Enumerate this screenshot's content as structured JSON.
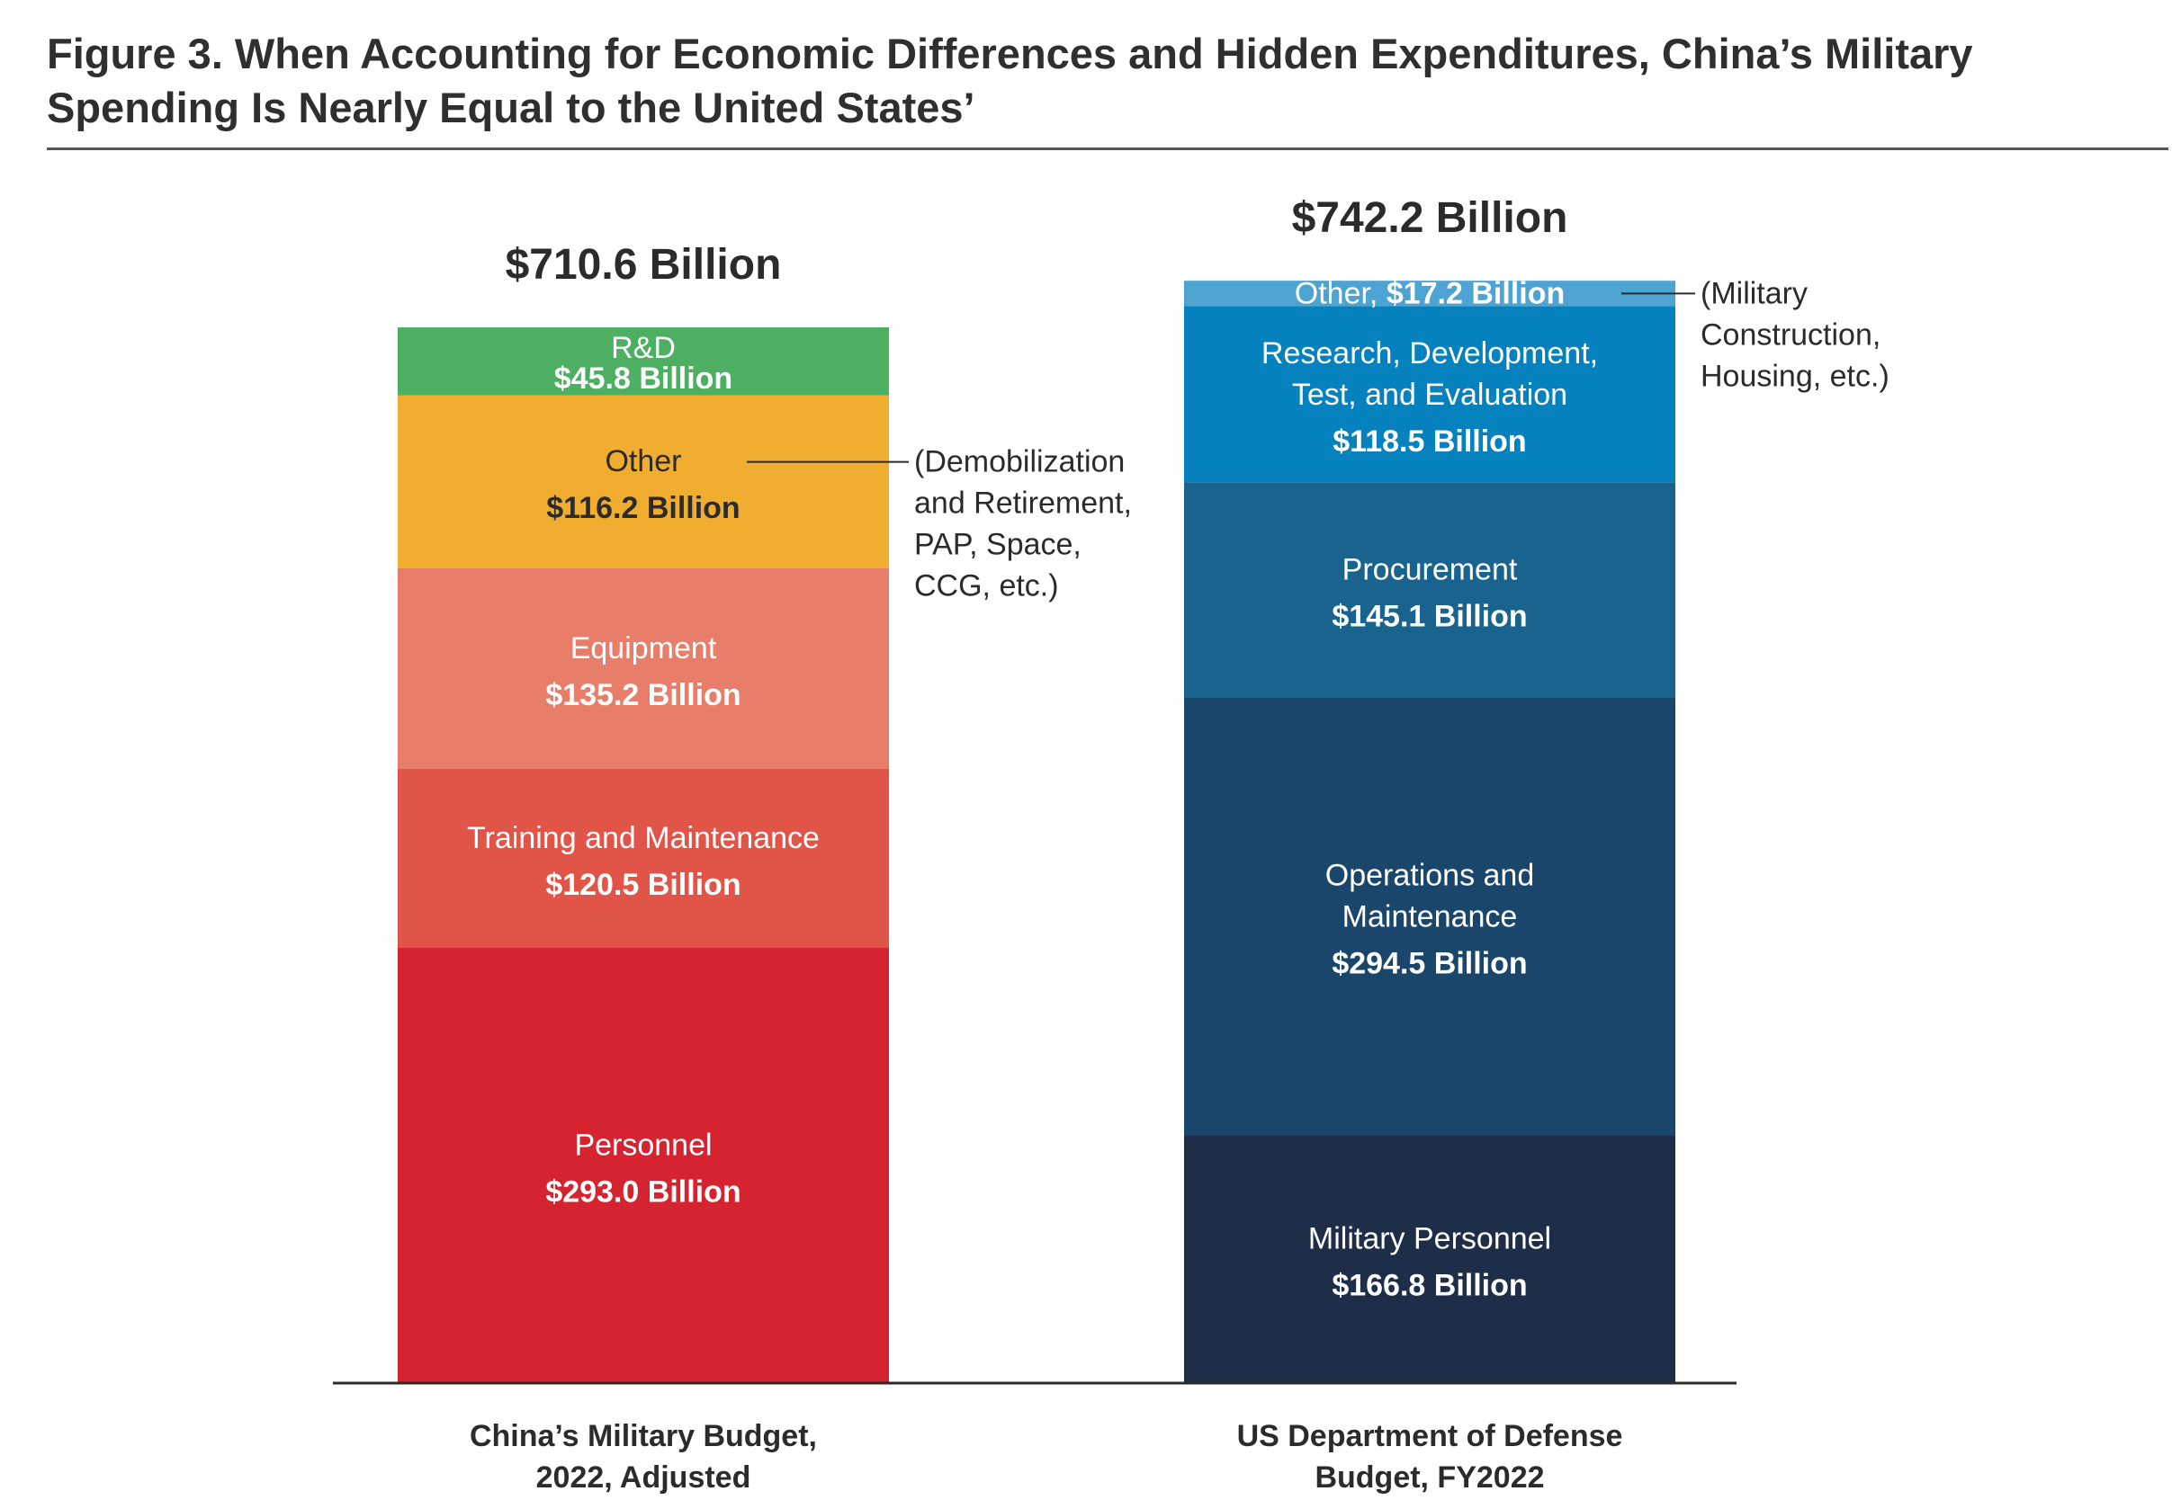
{
  "title": "Figure 3. When Accounting for Economic Differences and Hidden Expenditures, China’s Military Spending Is Nearly Equal to the United States’",
  "chart_data": {
    "type": "bar",
    "stacked": true,
    "unit": "Billion",
    "grid": false,
    "legend": "none",
    "ylim": [
      0,
      742.2
    ],
    "categories": [
      {
        "label_lines": [
          "China’s Military Budget,",
          "2022, Adjusted"
        ],
        "total_label": "$710.6 Billion",
        "total": 710.6
      },
      {
        "label_lines": [
          "US Department of Defense",
          "Budget, FY2022"
        ],
        "total_label": "$742.2 Billion",
        "total": 742.2
      }
    ],
    "stacks": [
      {
        "segments": [
          {
            "name_lines": [
              "Personnel"
            ],
            "value": 293.0,
            "value_label": "$293.0 Billion",
            "color": "#d62330",
            "text_color": "#ffffff"
          },
          {
            "name_lines": [
              "Training and Maintenance"
            ],
            "value": 120.5,
            "value_label": "$120.5 Billion",
            "color": "#e05548",
            "text_color": "#ffffff"
          },
          {
            "name_lines": [
              "Equipment"
            ],
            "value": 135.2,
            "value_label": "$135.2 Billion",
            "color": "#e87e69",
            "text_color": "#ffffff"
          },
          {
            "name_lines": [
              "Other"
            ],
            "value": 116.2,
            "value_label": "$116.2 Billion",
            "color": "#f1ad30",
            "text_color": "#2b2b2b",
            "note_lines": [
              "(Demobilization",
              "and Retirement,",
              "PAP, Space,",
              "CCG, etc.)"
            ]
          },
          {
            "name_lines": [
              "R&D"
            ],
            "value": 45.8,
            "value_label": "$45.8 Billion",
            "color": "#4daf62",
            "text_color": "#ffffff"
          }
        ]
      },
      {
        "segments": [
          {
            "name_lines": [
              "Military Personnel"
            ],
            "value": 166.8,
            "value_label": "$166.8 Billion",
            "color": "#1e2e48",
            "text_color": "#ffffff"
          },
          {
            "name_lines": [
              "Operations and",
              "Maintenance"
            ],
            "value": 294.5,
            "value_label": "$294.5 Billion",
            "color": "#1b466b",
            "text_color": "#ffffff"
          },
          {
            "name_lines": [
              "Procurement"
            ],
            "value": 145.1,
            "value_label": "$145.1 Billion",
            "color": "#19648f",
            "text_color": "#ffffff"
          },
          {
            "name_lines": [
              "Research, Development,",
              "Test, and Evaluation"
            ],
            "value": 118.5,
            "value_label": "$118.5 Billion",
            "color": "#0582be",
            "text_color": "#ffffff"
          },
          {
            "name_lines": [
              "Other,"
            ],
            "value": 17.2,
            "value_label": "$17.2 Billion",
            "color": "#4da3d2",
            "text_color": "#ffffff",
            "inline": true,
            "note_lines": [
              "(Military",
              "Construction,",
              "Housing, etc.)"
            ]
          }
        ]
      }
    ]
  }
}
